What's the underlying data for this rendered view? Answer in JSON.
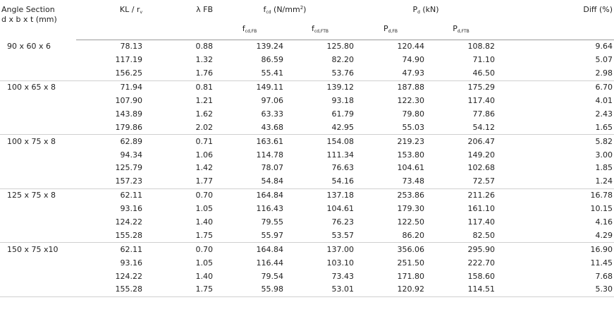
{
  "headers": {
    "section_line1": "Angle Section",
    "section_line2": "d x b x t (mm)",
    "klr": "KL / r",
    "klr_sub": "v",
    "lambda": "λ FB",
    "fcd_base": "f",
    "fcd_sub": "cd",
    "fcd_unit": " (N/mm",
    "fcd_sup": "2",
    "fcd_close": ")",
    "pd_base": "P",
    "pd_sub": "d",
    "pd_unit": " (kN)",
    "diff": "Diff (%)",
    "sub_f": "f",
    "sub_fcdfb": "cd,FB",
    "sub_fcdftb": "cd,FTB",
    "sub_p": "P",
    "sub_pdfb": "d,FB",
    "sub_pdftb": "d,FTB"
  },
  "rows": [
    {
      "section": "90 x 60 x 6",
      "klr": "78.13",
      "lambda": "0.88",
      "fcd_fb": "139.24",
      "fcd_ftb": "125.80",
      "pd_fb": "120.44",
      "pd_ftb": "108.82",
      "diff": "9.64"
    },
    {
      "section": "",
      "klr": "117.19",
      "lambda": "1.32",
      "fcd_fb": "86.59",
      "fcd_ftb": "82.20",
      "pd_fb": "74.90",
      "pd_ftb": "71.10",
      "diff": "5.07"
    },
    {
      "section": "",
      "klr": "156.25",
      "lambda": "1.76",
      "fcd_fb": "55.41",
      "fcd_ftb": "53.76",
      "pd_fb": "47.93",
      "pd_ftb": "46.50",
      "diff": "2.98"
    },
    {
      "section": "100 x 65 x 8",
      "klr": "71.94",
      "lambda": "0.81",
      "fcd_fb": "149.11",
      "fcd_ftb": "139.12",
      "pd_fb": "187.88",
      "pd_ftb": "175.29",
      "diff": "6.70"
    },
    {
      "section": "",
      "klr": "107.90",
      "lambda": "1.21",
      "fcd_fb": "97.06",
      "fcd_ftb": "93.18",
      "pd_fb": "122.30",
      "pd_ftb": "117.40",
      "diff": "4.01"
    },
    {
      "section": "",
      "klr": "143.89",
      "lambda": "1.62",
      "fcd_fb": "63.33",
      "fcd_ftb": "61.79",
      "pd_fb": "79.80",
      "pd_ftb": "77.86",
      "diff": "2.43"
    },
    {
      "section": "",
      "klr": "179.86",
      "lambda": "2.02",
      "fcd_fb": "43.68",
      "fcd_ftb": "42.95",
      "pd_fb": "55.03",
      "pd_ftb": "54.12",
      "diff": "1.65"
    },
    {
      "section": "100 x 75 x 8",
      "klr": "62.89",
      "lambda": "0.71",
      "fcd_fb": "163.61",
      "fcd_ftb": "154.08",
      "pd_fb": "219.23",
      "pd_ftb": "206.47",
      "diff": "5.82"
    },
    {
      "section": "",
      "klr": "94.34",
      "lambda": "1.06",
      "fcd_fb": "114.78",
      "fcd_ftb": "111.34",
      "pd_fb": "153.80",
      "pd_ftb": "149.20",
      "diff": "3.00"
    },
    {
      "section": "",
      "klr": "125.79",
      "lambda": "1.42",
      "fcd_fb": "78.07",
      "fcd_ftb": "76.63",
      "pd_fb": "104.61",
      "pd_ftb": "102.68",
      "diff": "1.85"
    },
    {
      "section": "",
      "klr": "157.23",
      "lambda": "1.77",
      "fcd_fb": "54.84",
      "fcd_ftb": "54.16",
      "pd_fb": "73.48",
      "pd_ftb": "72.57",
      "diff": "1.24"
    },
    {
      "section": "125 x 75 x 8",
      "klr": "62.11",
      "lambda": "0.70",
      "fcd_fb": "164.84",
      "fcd_ftb": "137.18",
      "pd_fb": "253.86",
      "pd_ftb": "211.26",
      "diff": "16.78"
    },
    {
      "section": "",
      "klr": "93.16",
      "lambda": "1.05",
      "fcd_fb": "116.43",
      "fcd_ftb": "104.61",
      "pd_fb": "179.30",
      "pd_ftb": "161.10",
      "diff": "10.15"
    },
    {
      "section": "",
      "klr": "124.22",
      "lambda": "1.40",
      "fcd_fb": "79.55",
      "fcd_ftb": "76.23",
      "pd_fb": "122.50",
      "pd_ftb": "117.40",
      "diff": "4.16"
    },
    {
      "section": "",
      "klr": "155.28",
      "lambda": "1.75",
      "fcd_fb": "55.97",
      "fcd_ftb": "53.57",
      "pd_fb": "86.20",
      "pd_ftb": "82.50",
      "diff": "4.29"
    },
    {
      "section": "150 x 75 x10",
      "klr": "62.11",
      "lambda": "0.70",
      "fcd_fb": "164.84",
      "fcd_ftb": "137.00",
      "pd_fb": "356.06",
      "pd_ftb": "295.90",
      "diff": "16.90"
    },
    {
      "section": "",
      "klr": "93.16",
      "lambda": "1.05",
      "fcd_fb": "116.44",
      "fcd_ftb": "103.10",
      "pd_fb": "251.50",
      "pd_ftb": "222.70",
      "diff": "11.45"
    },
    {
      "section": "",
      "klr": "124.22",
      "lambda": "1.40",
      "fcd_fb": "79.54",
      "fcd_ftb": "73.43",
      "pd_fb": "171.80",
      "pd_ftb": "158.60",
      "diff": "7.68"
    },
    {
      "section": "",
      "klr": "155.28",
      "lambda": "1.75",
      "fcd_fb": "55.98",
      "fcd_ftb": "53.01",
      "pd_fb": "120.92",
      "pd_ftb": "114.51",
      "diff": "5.30"
    }
  ]
}
